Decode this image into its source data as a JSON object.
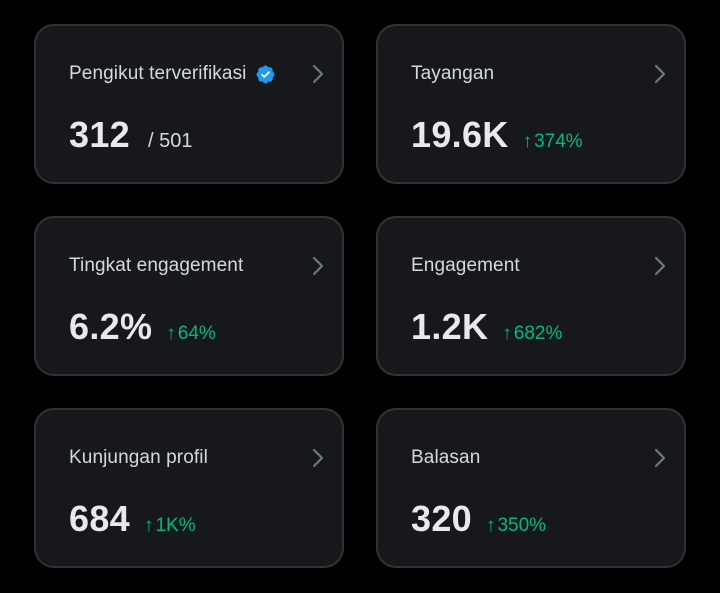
{
  "colors": {
    "background": "#000000",
    "card_background": "#16181c",
    "card_border": "#2f3336",
    "positive": "#00ba7c",
    "verified_badge": "#1d9bf0"
  },
  "cards": [
    {
      "label": "Pengikut terverifikasi",
      "value": "312",
      "sub": "/ 501",
      "icon": "verified-badge-icon"
    },
    {
      "label": "Tayangan",
      "value": "19.6K",
      "delta_arrow": "↑",
      "delta": "374%"
    },
    {
      "label": "Tingkat engagement",
      "value": "6.2%",
      "delta_arrow": "↑",
      "delta": "64%"
    },
    {
      "label": "Engagement",
      "value": "1.2K",
      "delta_arrow": "↑",
      "delta": "682%"
    },
    {
      "label": "Kunjungan profil",
      "value": "684",
      "delta_arrow": "↑",
      "delta": "1K%"
    },
    {
      "label": "Balasan",
      "value": "320",
      "delta_arrow": "↑",
      "delta": "350%"
    }
  ]
}
